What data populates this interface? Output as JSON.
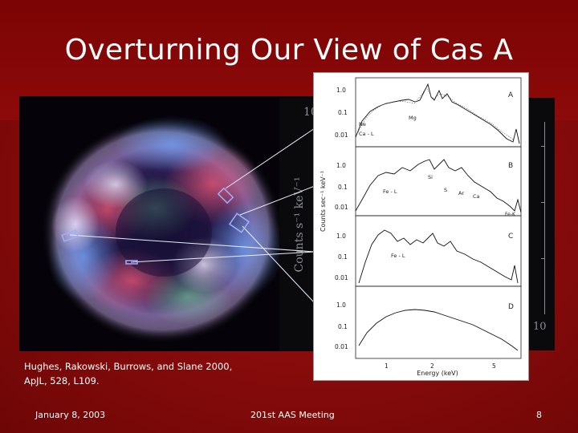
{
  "slide": {
    "title": "Overturning Our View of Cas A",
    "citation_line1": "Hughes, Rakowski, Burrows, and Slane 2000,",
    "citation_line2": "ApJL, 528, L109.",
    "footer": {
      "date": "January 8, 2003",
      "meeting": "201st AAS Meeting",
      "page": "8"
    }
  },
  "background_plot": {
    "y_tick_top": "10",
    "y_label": "Counts s⁻¹ keV⁻¹",
    "x_tick_right": "10"
  },
  "spectra_figure": {
    "y_axis_label": "Counts sec⁻¹ keV⁻¹",
    "x_axis_label": "Energy (keV)",
    "x_ticks": [
      "1",
      "2",
      "5"
    ],
    "y_ticks": [
      "1.0",
      "0.1",
      "0.01"
    ],
    "panels": [
      {
        "letter": "A",
        "lines": [
          "Ne",
          "Mg",
          "Ca - L"
        ]
      },
      {
        "letter": "B",
        "lines": [
          "Si",
          "S",
          "Ar",
          "Ca",
          "Fe - L",
          "Fe-K"
        ]
      },
      {
        "letter": "C",
        "lines": [
          "Fe - L"
        ]
      },
      {
        "letter": "D",
        "lines": []
      }
    ]
  },
  "colors": {
    "background": "#8a0c0c",
    "title_text": "#ffffff",
    "panel_bg": "#ffffff"
  }
}
